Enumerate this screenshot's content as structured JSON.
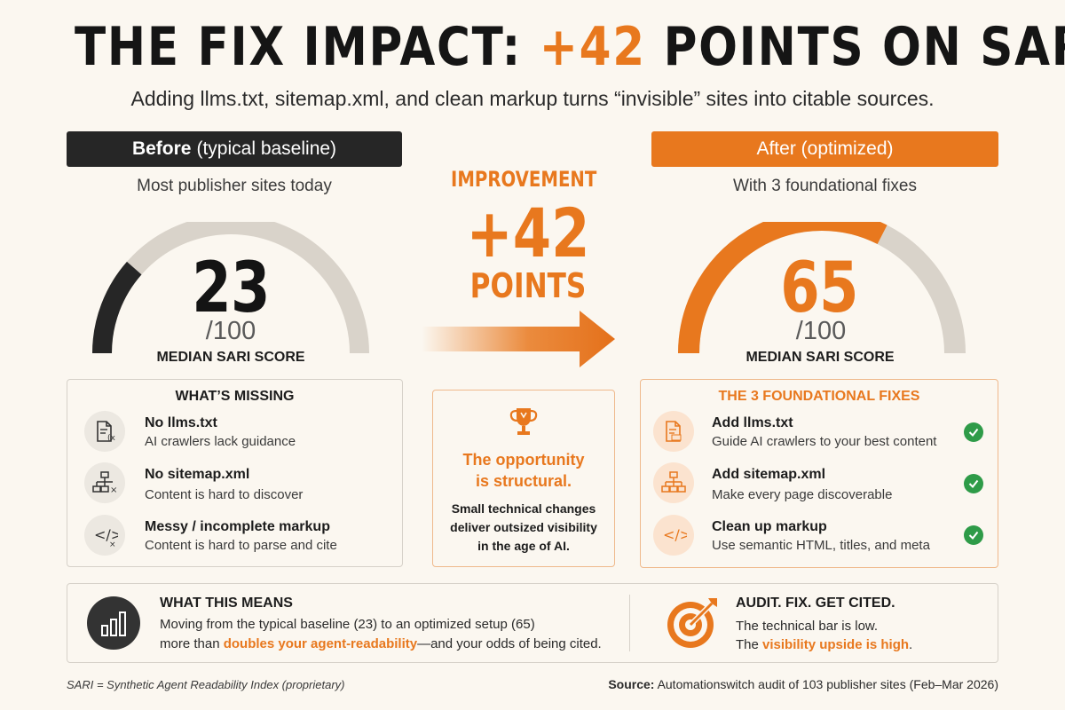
{
  "title": {
    "prefix": "THE FIX IMPACT: ",
    "accent": "+42",
    "suffix": " POINTS ON SARI"
  },
  "subtitle": "Adding llms.txt, sitemap.xml, and clean markup turns “invisible” sites into citable sources.",
  "before": {
    "header_bold": "Before",
    "header_rest": "(typical baseline)",
    "tagline": "Most publisher sites today",
    "score": "23",
    "score_max": "/100",
    "score_label": "MEDIAN SARI SCORE",
    "gauge_fraction": 0.23
  },
  "after": {
    "header": "After (optimized)",
    "tagline": "With 3 foundational fixes",
    "score": "65",
    "score_max": "/100",
    "score_label": "MEDIAN SARI SCORE",
    "gauge_fraction": 0.65
  },
  "improvement": {
    "label": "IMPROVEMENT",
    "value": "+42",
    "unit": "POINTS"
  },
  "missing": {
    "title": "WHAT’S MISSING",
    "items": [
      {
        "title": "No llms.txt",
        "desc": "AI crawlers lack guidance",
        "icon": "document-x-icon"
      },
      {
        "title": "No sitemap.xml",
        "desc": "Content is hard to discover",
        "icon": "sitemap-x-icon"
      },
      {
        "title": "Messy / incomplete markup",
        "desc": "Content is hard to parse and cite",
        "icon": "code-x-icon"
      }
    ]
  },
  "opportunity": {
    "title_line1": "The opportunity",
    "title_line2": "is structural.",
    "desc_line1": "Small technical changes",
    "desc_line2": "deliver outsized visibility",
    "desc_line3": "in the age of AI.",
    "icon": "trophy-icon"
  },
  "fixes": {
    "title": "THE 3 FOUNDATIONAL FIXES",
    "items": [
      {
        "title": "Add llms.txt",
        "desc": "Guide AI crawlers to your best content",
        "icon": "document-txt-icon"
      },
      {
        "title": "Add sitemap.xml",
        "desc": "Make every page discoverable",
        "icon": "sitemap-icon"
      },
      {
        "title": "Clean up markup",
        "desc": "Use semantic HTML, titles, and meta",
        "icon": "code-icon"
      }
    ]
  },
  "means": {
    "title": "WHAT THIS MEANS",
    "line1": "Moving from the typical baseline (23) to an optimized setup (65)",
    "line2_pre": "more than ",
    "line2_hl": "doubles your agent-readability",
    "line2_post": "—and your odds of being cited.",
    "icon": "bar-chart-icon"
  },
  "audit": {
    "title": "AUDIT. FIX. GET CITED.",
    "line1": "The technical bar is low.",
    "line2_pre": "The ",
    "line2_hl": "visibility upside is high",
    "line2_post": ".",
    "icon": "target-icon"
  },
  "footnote": "SARI = Synthetic Agent Readability Index (proprietary)",
  "source": {
    "label": "Source:",
    "text": "Automationswitch audit of 103 publisher sites (Feb–Mar 2026)"
  },
  "colors": {
    "accent": "#e8781e",
    "dark": "#262626",
    "track": "#d9d3ca",
    "check": "#2e9b48",
    "background": "#fbf7f0"
  }
}
